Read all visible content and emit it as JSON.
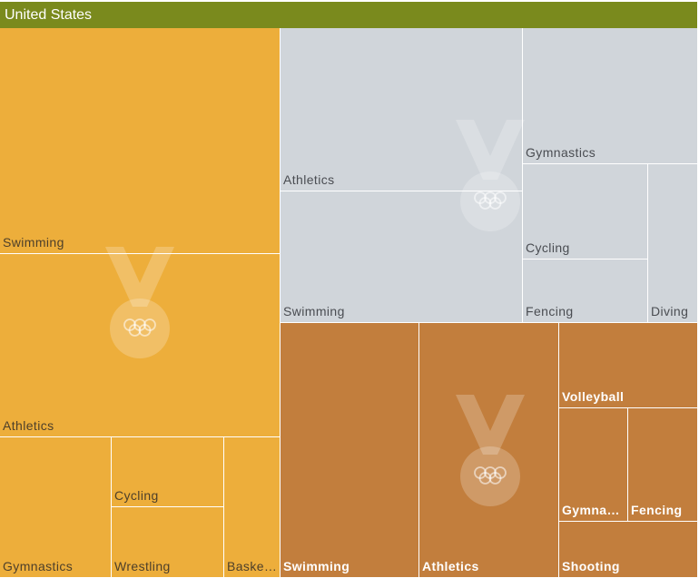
{
  "chart_data": {
    "type": "treemap",
    "title": "United States",
    "colors": {
      "header": "#7a8a1d",
      "gold": "#edae3b",
      "silver": "#d0d5da",
      "bronze": "#c27e3d"
    },
    "groups": [
      {
        "medal": "gold",
        "icon": "gold-medal-icon",
        "label_color": "#4d3f2a",
        "items": [
          {
            "name": "Swimming",
            "value": 119
          },
          {
            "name": "Athletics",
            "value": 97
          },
          {
            "name": "Gymnastics",
            "value": 23
          },
          {
            "name": "Cycling",
            "value": 11
          },
          {
            "name": "Wrestling",
            "value": 11
          },
          {
            "name": "Basketball",
            "value": 15
          }
        ]
      },
      {
        "medal": "silver",
        "icon": "silver-medal-icon",
        "label_color": "#4a4d52",
        "items": [
          {
            "name": "Athletics",
            "value": 49
          },
          {
            "name": "Swimming",
            "value": 40
          },
          {
            "name": "Gymnastics",
            "value": 19
          },
          {
            "name": "Cycling",
            "value": 8
          },
          {
            "name": "Fencing",
            "value": 6
          },
          {
            "name": "Diving",
            "value": 6
          }
        ]
      },
      {
        "medal": "bronze",
        "icon": "bronze-medal-icon",
        "label_color": "#ffffff",
        "items": [
          {
            "name": "Swimming",
            "value": 33
          },
          {
            "name": "Athletics",
            "value": 33
          },
          {
            "name": "Volleyball",
            "value": 11
          },
          {
            "name": "Gymnastics",
            "value": 9
          },
          {
            "name": "Fencing",
            "value": 9
          },
          {
            "name": "Shooting",
            "value": 7
          }
        ]
      }
    ]
  }
}
